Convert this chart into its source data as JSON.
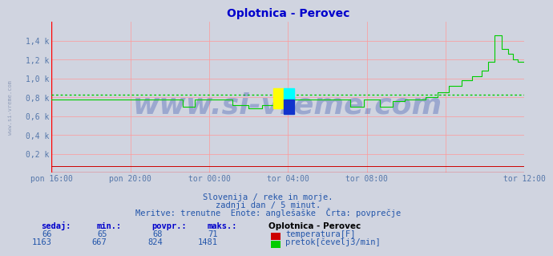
{
  "title": "Oplotnica - Perovec",
  "title_color": "#0000cc",
  "bg_color": "#d0d4e0",
  "plot_bg_color": "#d0d4e0",
  "grid_color": "#ff9999",
  "avg_line_color": "#00cc00",
  "avg_value": 824,
  "tick_color": "#5577aa",
  "xlim": [
    0,
    288
  ],
  "ylim": [
    0,
    1600
  ],
  "yticks": [
    200,
    400,
    600,
    800,
    1000,
    1200,
    1400
  ],
  "ytick_labels": [
    "0,2 k",
    "0,4 k",
    "0,6 k",
    "0,8 k",
    "1,0 k",
    "1,2 k",
    "1,4 k"
  ],
  "xtick_positions": [
    0,
    48,
    96,
    144,
    192,
    240,
    288
  ],
  "xtick_labels": [
    "pon 16:00",
    "pon 20:00",
    "tor 00:00",
    "tor 04:00",
    "tor 08:00",
    "",
    "tor 12:00"
  ],
  "temp_color": "#cc0000",
  "flow_color": "#00cc00",
  "watermark": "www.si-vreme.com",
  "watermark_color": "#2244aa",
  "watermark_alpha": 0.3,
  "subtitle1": "Slovenija / reke in morje.",
  "subtitle2": "zadnji dan / 5 minut.",
  "subtitle3": "Meritve: trenutne  Enote: anglešaške  Črta: povprečje",
  "subtitle_color": "#2255aa",
  "legend_title": "Oplotnica - Perovec",
  "table_header_color": "#0000cc",
  "table_color": "#2255aa",
  "row1": [
    66,
    65,
    68,
    71
  ],
  "row2": [
    1163,
    667,
    824,
    1481
  ],
  "legend_items": [
    "temperatura[F]",
    "pretok[čevelj3/min]"
  ],
  "legend_colors": [
    "#cc0000",
    "#00cc00"
  ],
  "sidevreme_color": "#7788aa"
}
